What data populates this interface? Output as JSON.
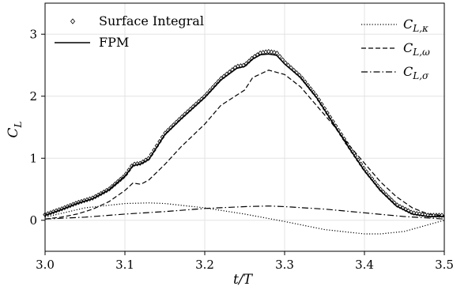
{
  "chart_data": {
    "type": "line",
    "xlabel": "t/T",
    "ylabel": "C_L",
    "xlim": [
      3.0,
      3.5
    ],
    "ylim": [
      -0.5,
      3.5
    ],
    "grid": true,
    "xticks": [
      "3.0",
      "3.1",
      "3.2",
      "3.3",
      "3.4",
      "3.5"
    ],
    "yticks": [
      "0",
      "1",
      "2",
      "3"
    ],
    "legends": {
      "left": {
        "placement": "top-left",
        "entries": [
          "Surface Integral",
          "FPM"
        ]
      },
      "right": {
        "placement": "top-right",
        "entries": [
          "C_{L,κ}",
          "C_{L,ω}",
          "C_{L,σ}"
        ]
      }
    },
    "series": [
      {
        "name": "Surface Integral",
        "style": "markers",
        "color": "#000000",
        "x": [
          3.0,
          3.02,
          3.04,
          3.06,
          3.08,
          3.1,
          3.11,
          3.12,
          3.13,
          3.15,
          3.17,
          3.2,
          3.22,
          3.24,
          3.25,
          3.26,
          3.27,
          3.28,
          3.29,
          3.3,
          3.32,
          3.34,
          3.36,
          3.38,
          3.4,
          3.42,
          3.44,
          3.46,
          3.48,
          3.5
        ],
        "y": [
          0.09,
          0.18,
          0.28,
          0.36,
          0.5,
          0.72,
          0.9,
          0.92,
          1.0,
          1.4,
          1.65,
          2.0,
          2.28,
          2.48,
          2.5,
          2.62,
          2.7,
          2.72,
          2.7,
          2.55,
          2.32,
          2.0,
          1.6,
          1.2,
          0.82,
          0.5,
          0.25,
          0.12,
          0.08,
          0.08
        ]
      },
      {
        "name": "FPM",
        "style": "solid",
        "color": "#000000",
        "x": [
          3.0,
          3.02,
          3.04,
          3.06,
          3.08,
          3.1,
          3.11,
          3.12,
          3.13,
          3.15,
          3.17,
          3.2,
          3.22,
          3.24,
          3.25,
          3.26,
          3.27,
          3.28,
          3.29,
          3.3,
          3.32,
          3.34,
          3.36,
          3.38,
          3.4,
          3.42,
          3.44,
          3.46,
          3.48,
          3.5
        ],
        "y": [
          0.08,
          0.17,
          0.27,
          0.35,
          0.49,
          0.71,
          0.88,
          0.91,
          0.98,
          1.38,
          1.63,
          1.98,
          2.26,
          2.45,
          2.48,
          2.6,
          2.67,
          2.68,
          2.66,
          2.52,
          2.3,
          1.98,
          1.58,
          1.18,
          0.8,
          0.48,
          0.23,
          0.1,
          0.06,
          0.06
        ]
      },
      {
        "name": "C_{L,κ}",
        "style": "dotted",
        "color": "#000000",
        "x": [
          3.0,
          3.05,
          3.1,
          3.13,
          3.15,
          3.2,
          3.25,
          3.3,
          3.35,
          3.4,
          3.42,
          3.45,
          3.5
        ],
        "y": [
          0.05,
          0.2,
          0.27,
          0.28,
          0.27,
          0.2,
          0.1,
          -0.02,
          -0.15,
          -0.22,
          -0.22,
          -0.18,
          0.0
        ]
      },
      {
        "name": "C_{L,ω}",
        "style": "dashed",
        "color": "#000000",
        "x": [
          3.0,
          3.02,
          3.04,
          3.06,
          3.08,
          3.1,
          3.11,
          3.12,
          3.13,
          3.15,
          3.17,
          3.2,
          3.22,
          3.25,
          3.26,
          3.28,
          3.3,
          3.32,
          3.34,
          3.36,
          3.38,
          3.4,
          3.42,
          3.44,
          3.46,
          3.48,
          3.5
        ],
        "y": [
          0.02,
          0.05,
          0.1,
          0.18,
          0.3,
          0.48,
          0.6,
          0.58,
          0.65,
          0.9,
          1.18,
          1.55,
          1.85,
          2.1,
          2.3,
          2.42,
          2.35,
          2.15,
          1.85,
          1.55,
          1.22,
          0.92,
          0.62,
          0.38,
          0.2,
          0.1,
          0.07
        ]
      },
      {
        "name": "C_{L,σ}",
        "style": "dashdot",
        "color": "#000000",
        "x": [
          3.0,
          3.05,
          3.1,
          3.15,
          3.2,
          3.25,
          3.28,
          3.3,
          3.35,
          3.4,
          3.45,
          3.5
        ],
        "y": [
          0.02,
          0.05,
          0.1,
          0.14,
          0.19,
          0.22,
          0.23,
          0.22,
          0.18,
          0.12,
          0.06,
          0.02
        ]
      }
    ]
  }
}
